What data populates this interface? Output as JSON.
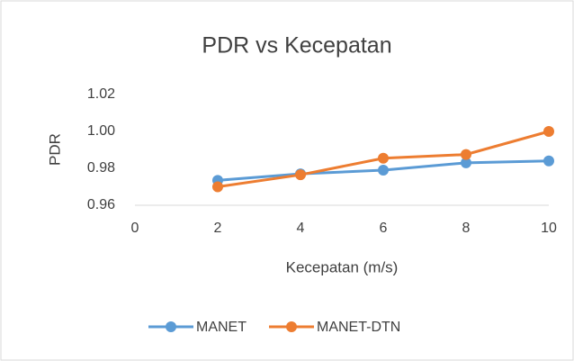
{
  "chart_data": {
    "type": "line",
    "title": "PDR vs Kecepatan",
    "x_label": "Kecepatan (m/s)",
    "y_label": "PDR",
    "x": [
      2,
      4,
      6,
      8,
      10
    ],
    "series": [
      {
        "name": "MANET",
        "color": "#5b9bd5",
        "values": [
          0.9735,
          0.977,
          0.979,
          0.983,
          0.984
        ]
      },
      {
        "name": "MANET-DTN",
        "color": "#ed7d31",
        "values": [
          0.97,
          0.9765,
          0.9855,
          0.9875,
          1.0
        ]
      }
    ],
    "xlim": [
      0,
      10
    ],
    "xticks": [
      0,
      2,
      4,
      6,
      8,
      10
    ],
    "ylim": [
      0.96,
      1.02
    ],
    "yticks": [
      0.96,
      0.98,
      {
        "value": 1,
        "label": "1.00"
      },
      1.02
    ],
    "grid": false,
    "legend": "bottom"
  }
}
